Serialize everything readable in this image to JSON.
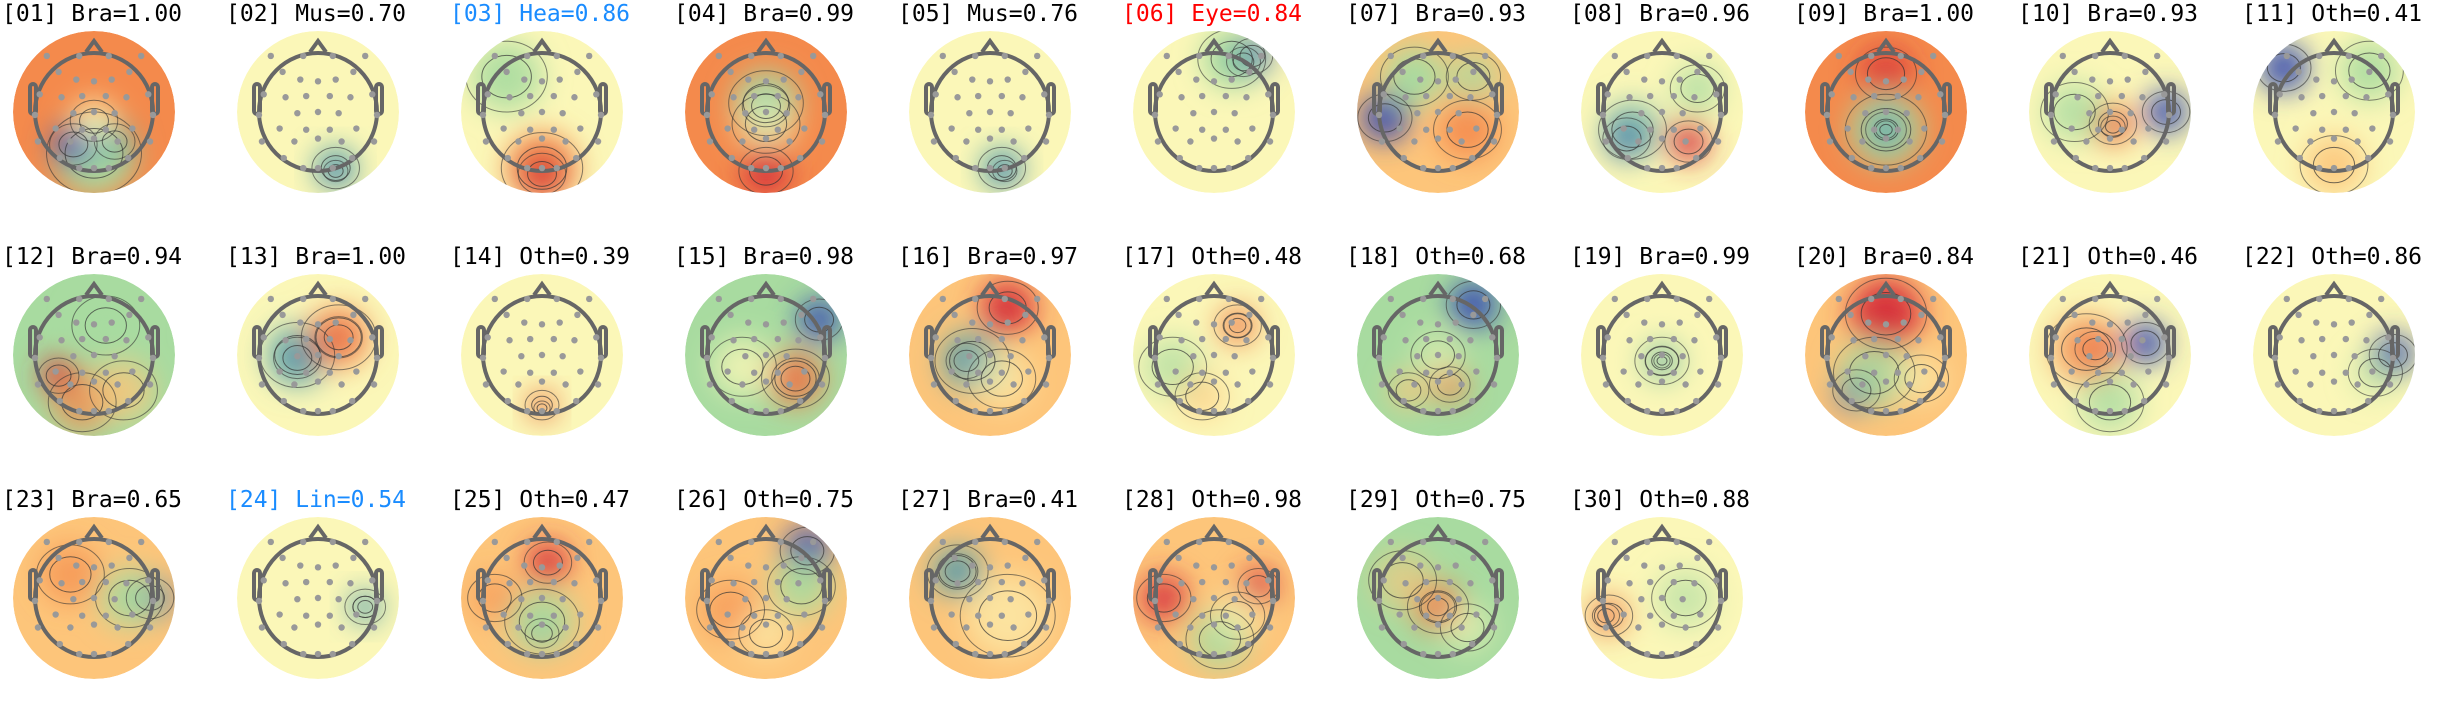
{
  "colors": {
    "normal": "#000000",
    "eye": "#ff0000",
    "highlight": "#1a8cff"
  },
  "colormap": [
    "#3b4fb0",
    "#5fb0a8",
    "#a8dba0",
    "#fbf7b8",
    "#fdc57a",
    "#f48a4c",
    "#d7303a"
  ],
  "components": [
    {
      "label": "[01] Bra=1.00",
      "color": "normal"
    },
    {
      "label": "[02] Mus=0.70",
      "color": "normal"
    },
    {
      "label": "[03] Hea=0.86",
      "color": "highlight"
    },
    {
      "label": "[04] Bra=0.99",
      "color": "normal"
    },
    {
      "label": "[05] Mus=0.76",
      "color": "normal"
    },
    {
      "label": "[06] Eye=0.84",
      "color": "eye"
    },
    {
      "label": "[07] Bra=0.93",
      "color": "normal"
    },
    {
      "label": "[08] Bra=0.96",
      "color": "normal"
    },
    {
      "label": "[09] Bra=1.00",
      "color": "normal"
    },
    {
      "label": "[10] Bra=0.93",
      "color": "normal"
    },
    {
      "label": "[11] Oth=0.41",
      "color": "normal"
    },
    {
      "label": "[12] Bra=0.94",
      "color": "normal"
    },
    {
      "label": "[13] Bra=1.00",
      "color": "normal"
    },
    {
      "label": "[14] Oth=0.39",
      "color": "normal"
    },
    {
      "label": "[15] Bra=0.98",
      "color": "normal"
    },
    {
      "label": "[16] Bra=0.97",
      "color": "normal"
    },
    {
      "label": "[17] Oth=0.48",
      "color": "normal"
    },
    {
      "label": "[18] Oth=0.68",
      "color": "normal"
    },
    {
      "label": "[19] Bra=0.99",
      "color": "normal"
    },
    {
      "label": "[20] Bra=0.84",
      "color": "normal"
    },
    {
      "label": "[21] Oth=0.46",
      "color": "normal"
    },
    {
      "label": "[22] Oth=0.86",
      "color": "normal"
    },
    {
      "label": "[23] Bra=0.65",
      "color": "normal"
    },
    {
      "label": "[24] Lin=0.54",
      "color": "highlight"
    },
    {
      "label": "[25] Oth=0.47",
      "color": "normal"
    },
    {
      "label": "[26] Oth=0.75",
      "color": "normal"
    },
    {
      "label": "[27] Bra=0.41",
      "color": "normal"
    },
    {
      "label": "[28] Oth=0.98",
      "color": "normal"
    },
    {
      "label": "[29] Oth=0.75",
      "color": "normal"
    },
    {
      "label": "[30] Oth=0.88",
      "color": "normal"
    }
  ]
}
